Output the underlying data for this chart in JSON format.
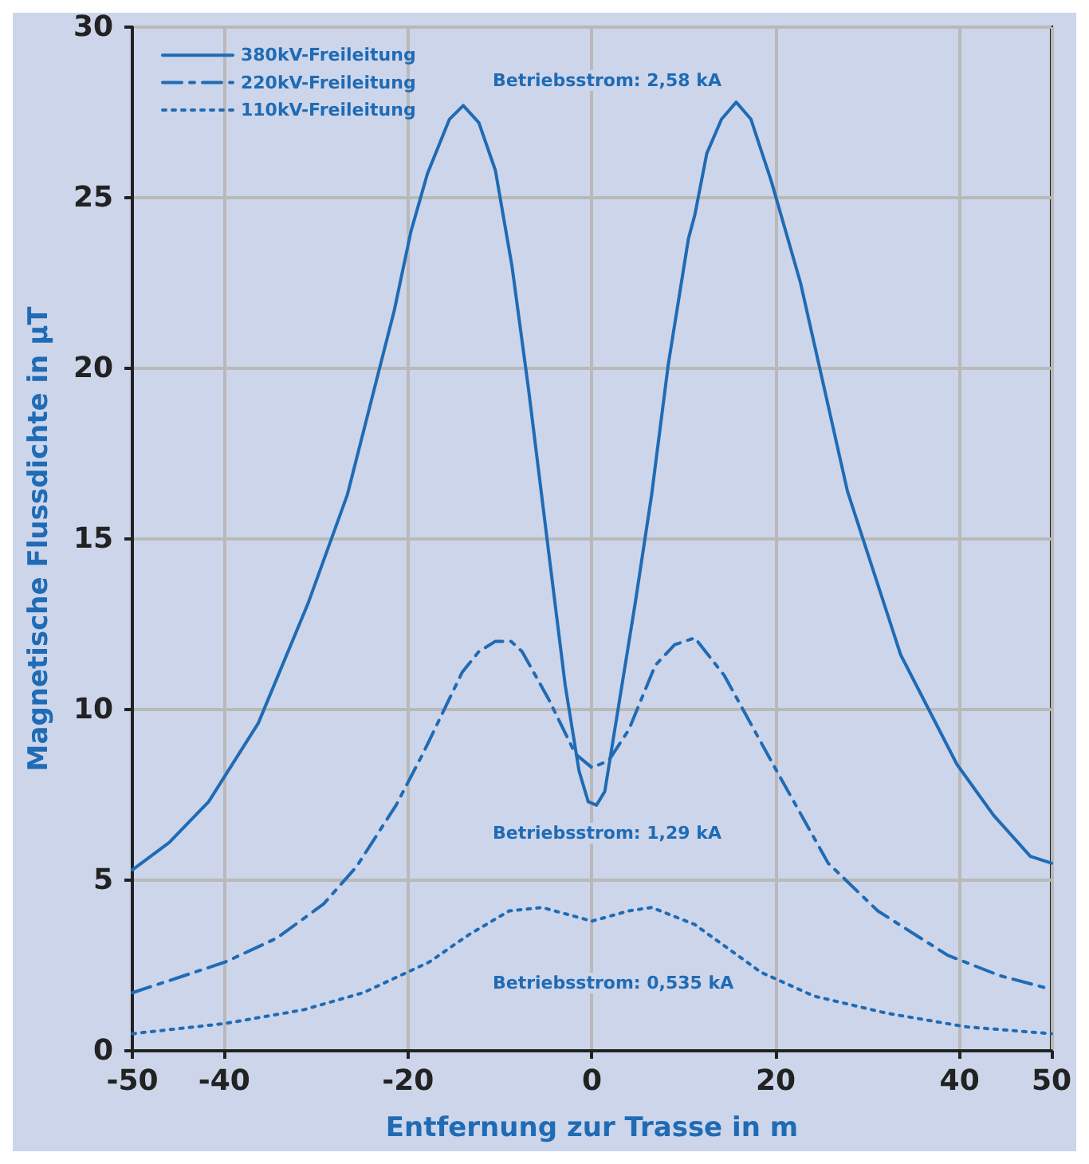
{
  "chart_data": {
    "type": "line",
    "xlabel": "Entfernung zur Trasse in m",
    "ylabel": "Magnetische Flussdichte in µT",
    "xlim": [
      -50,
      50
    ],
    "xticks": [
      -50,
      -40,
      -20,
      0,
      20,
      40,
      50
    ],
    "ylim": [
      0,
      30
    ],
    "yticks": [
      0,
      5,
      10,
      15,
      20,
      25,
      30
    ],
    "grid": true,
    "legend": "top left",
    "marker": "none",
    "series": [
      {
        "name": "380kV-Freileitung",
        "color": "#1f6bb5",
        "line_style": "solid",
        "x": [
          -50,
          -46,
          -41.7,
          -36.3,
          -30.9,
          -26.6,
          -21.5,
          -19.7,
          -17.9,
          -15.5,
          -14,
          -12.3,
          -10.5,
          -8.7,
          -6.9,
          -4.7,
          -2.9,
          -1.4,
          -0.4,
          0.5,
          1.4,
          2.9,
          4.7,
          6.5,
          8.3,
          10.5,
          11.2,
          12.5,
          14.1,
          15.7,
          17.3,
          19.5,
          22.7,
          27.8,
          33.6,
          39.7,
          43.7,
          47.7,
          50
        ],
        "values": [
          5.3,
          6.1,
          7.3,
          9.6,
          13.1,
          16.3,
          21.7,
          24,
          25.7,
          27.3,
          27.7,
          27.2,
          25.8,
          23,
          19.4,
          14.6,
          10.7,
          8.2,
          7.3,
          7.2,
          7.6,
          10.1,
          13.1,
          16.3,
          20.1,
          23.8,
          24.5,
          26.3,
          27.3,
          27.8,
          27.3,
          25.5,
          22.5,
          16.4,
          11.6,
          8.4,
          6.9,
          5.7,
          5.5
        ]
      },
      {
        "name": "220kV-Freileitung",
        "color": "#1f6bb5",
        "line_style": "dashed",
        "x": [
          -50,
          -39.9,
          -34.3,
          -29.2,
          -25.6,
          -21.3,
          -18.4,
          -14.1,
          -12.3,
          -10.5,
          -8.8,
          -7.6,
          -4.7,
          -1.8,
          0,
          1.8,
          4,
          6.9,
          9,
          11.2,
          14.4,
          19.9,
          25.7,
          31.1,
          38.7,
          44.4,
          50
        ],
        "values": [
          1.7,
          2.6,
          3.3,
          4.3,
          5.4,
          7.2,
          8.7,
          11.1,
          11.7,
          12,
          12,
          11.7,
          10.3,
          8.7,
          8.3,
          8.5,
          9.4,
          11.3,
          11.9,
          12.1,
          11,
          8.3,
          5.5,
          4.1,
          2.8,
          2.2,
          1.8
        ]
      },
      {
        "name": "110kV-Freileitung",
        "color": "#1f6bb5",
        "line_style": "dotted",
        "x": [
          -50,
          -39.9,
          -31.4,
          -24.9,
          -17.7,
          -13.4,
          -9,
          -5.4,
          0,
          4,
          6.5,
          11.2,
          18.4,
          24.2,
          32.1,
          40.8,
          50
        ],
        "values": [
          0.5,
          0.8,
          1.2,
          1.7,
          2.6,
          3.4,
          4.1,
          4.2,
          3.8,
          4.1,
          4.2,
          3.7,
          2.3,
          1.6,
          1.1,
          0.7,
          0.5
        ]
      }
    ],
    "annotations": [
      "Betriebsstrom: 2,58 kA",
      "Betriebsstrom: 1,29 kA",
      "Betriebsstrom: 0,535 kA"
    ]
  }
}
